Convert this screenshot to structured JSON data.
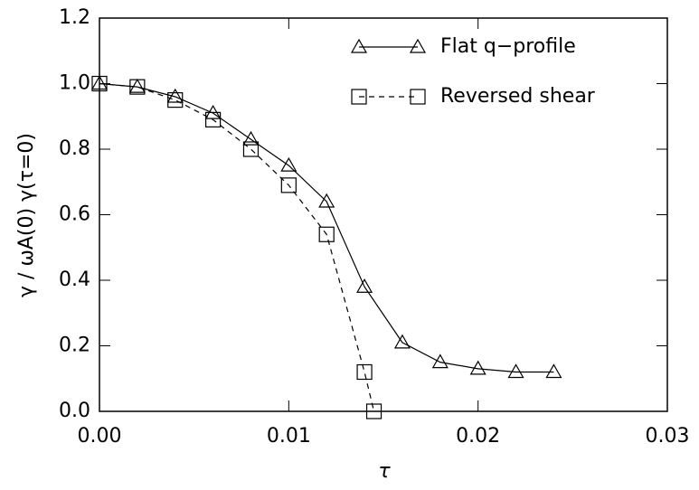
{
  "chart_data": {
    "type": "line",
    "xlabel": "τ",
    "ylabel": "γ / ωA(0) γ(τ=0)",
    "xlim": [
      0,
      0.03
    ],
    "ylim": [
      0,
      1.2
    ],
    "xticks": [
      {
        "value": 0,
        "label": "0.00"
      },
      {
        "value": 0.01,
        "label": "0.01"
      },
      {
        "value": 0.02,
        "label": "0.02"
      },
      {
        "value": 0.03,
        "label": "0.03"
      }
    ],
    "yticks": [
      {
        "value": 0,
        "label": "0.0"
      },
      {
        "value": 0.2,
        "label": "0.2"
      },
      {
        "value": 0.4,
        "label": "0.4"
      },
      {
        "value": 0.6,
        "label": "0.6"
      },
      {
        "value": 0.8,
        "label": "0.8"
      },
      {
        "value": 1.0,
        "label": "1.0"
      },
      {
        "value": 1.2,
        "label": "1.2"
      }
    ],
    "legend": "upper right",
    "series": [
      {
        "name": "Flat q−profile",
        "color": "#000000",
        "marker": "triangle",
        "dash": false,
        "x": [
          0,
          0.002,
          0.004,
          0.006,
          0.008,
          0.01,
          0.012,
          0.014,
          0.016,
          0.018,
          0.02,
          0.022,
          0.024
        ],
        "values": [
          1.0,
          0.99,
          0.96,
          0.91,
          0.83,
          0.75,
          0.64,
          0.38,
          0.21,
          0.15,
          0.13,
          0.12,
          0.12
        ]
      },
      {
        "name": "Reversed shear",
        "color": "#000000",
        "marker": "square",
        "dash": true,
        "x": [
          0,
          0.002,
          0.004,
          0.006,
          0.008,
          0.01,
          0.012,
          0.014,
          0.0145
        ],
        "values": [
          1.0,
          0.99,
          0.95,
          0.89,
          0.8,
          0.69,
          0.54,
          0.12,
          0.0
        ]
      }
    ]
  }
}
